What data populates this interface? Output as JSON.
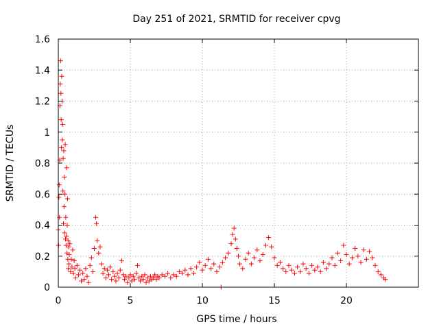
{
  "chart_data": {
    "type": "scatter",
    "title": "Day 251 of 2021, SRMTID for receiver cpvg",
    "xlabel": "GPS time / hours",
    "ylabel": "SRMTID / TECUs",
    "xlim": [
      0,
      25
    ],
    "ylim": [
      0,
      1.6
    ],
    "grid": true,
    "marker": "plus",
    "x_ticks": [
      0,
      5,
      10,
      15,
      20
    ],
    "x_tick_labels": [
      "0",
      "5",
      "10",
      "15",
      "20"
    ],
    "y_ticks": [
      0,
      0.2,
      0.4,
      0.6,
      0.8,
      1.0,
      1.2,
      1.4,
      1.6
    ],
    "y_tick_labels": [
      "0",
      "0.2",
      "0.4",
      "0.6",
      "0.8",
      "1",
      "1.2",
      "1.4",
      "1.6"
    ],
    "series": [
      {
        "name": "SRMTID",
        "color": "#ff0000",
        "points": [
          [
            0.0,
            0.37
          ],
          [
            0.02,
            0.27
          ],
          [
            0.04,
            0.58
          ],
          [
            0.06,
            0.66
          ],
          [
            0.08,
            0.45
          ],
          [
            0.1,
            0.82
          ],
          [
            0.12,
            1.17
          ],
          [
            0.14,
            1.31
          ],
          [
            0.16,
            1.46
          ],
          [
            0.18,
            1.25
          ],
          [
            0.2,
            1.08
          ],
          [
            0.22,
            0.9
          ],
          [
            0.24,
            1.36
          ],
          [
            0.26,
            1.2
          ],
          [
            0.28,
            0.95
          ],
          [
            0.3,
            1.05
          ],
          [
            0.32,
            0.62
          ],
          [
            0.34,
            0.83
          ],
          [
            0.36,
            0.41
          ],
          [
            0.38,
            0.88
          ],
          [
            0.4,
            0.52
          ],
          [
            0.42,
            0.71
          ],
          [
            0.44,
            0.35
          ],
          [
            0.46,
            0.6
          ],
          [
            0.48,
            0.92
          ],
          [
            0.5,
            0.31
          ],
          [
            0.52,
            0.45
          ],
          [
            0.54,
            0.27
          ],
          [
            0.56,
            0.33
          ],
          [
            0.58,
            0.77
          ],
          [
            0.6,
            0.22
          ],
          [
            0.62,
            0.4
          ],
          [
            0.64,
            0.57
          ],
          [
            0.66,
            0.18
          ],
          [
            0.68,
            0.3
          ],
          [
            0.7,
            0.12
          ],
          [
            0.72,
            0.26
          ],
          [
            0.74,
            0.15
          ],
          [
            0.76,
            0.21
          ],
          [
            0.8,
            0.28
          ],
          [
            0.85,
            0.1
          ],
          [
            0.9,
            0.18
          ],
          [
            0.95,
            0.13
          ],
          [
            1.0,
            0.24
          ],
          [
            1.05,
            0.09
          ],
          [
            1.1,
            0.17
          ],
          [
            1.15,
            0.12
          ],
          [
            1.2,
            0.06
          ],
          [
            1.3,
            0.14
          ],
          [
            1.4,
            0.08
          ],
          [
            1.5,
            0.11
          ],
          [
            1.6,
            0.04
          ],
          [
            1.7,
            0.09
          ],
          [
            1.8,
            0.05
          ],
          [
            1.9,
            0.12
          ],
          [
            2.0,
            0.07
          ],
          [
            2.1,
            0.03
          ],
          [
            2.2,
            0.14
          ],
          [
            2.3,
            0.19
          ],
          [
            2.4,
            0.1
          ],
          [
            2.5,
            0.25
          ],
          [
            2.6,
            0.45
          ],
          [
            2.65,
            0.41
          ],
          [
            2.7,
            0.3
          ],
          [
            2.8,
            0.22
          ],
          [
            2.9,
            0.26
          ],
          [
            3.0,
            0.15
          ],
          [
            3.1,
            0.09
          ],
          [
            3.2,
            0.12
          ],
          [
            3.3,
            0.06
          ],
          [
            3.4,
            0.11
          ],
          [
            3.5,
            0.08
          ],
          [
            3.6,
            0.13
          ],
          [
            3.7,
            0.05
          ],
          [
            3.8,
            0.1
          ],
          [
            3.9,
            0.07
          ],
          [
            4.0,
            0.04
          ],
          [
            4.1,
            0.09
          ],
          [
            4.2,
            0.06
          ],
          [
            4.3,
            0.11
          ],
          [
            4.4,
            0.17
          ],
          [
            4.5,
            0.08
          ],
          [
            4.6,
            0.05
          ],
          [
            4.7,
            0.07
          ],
          [
            4.8,
            0.03
          ],
          [
            4.9,
            0.06
          ],
          [
            5.0,
            0.08
          ],
          [
            5.1,
            0.04
          ],
          [
            5.2,
            0.07
          ],
          [
            5.3,
            0.05
          ],
          [
            5.4,
            0.09
          ],
          [
            5.5,
            0.14
          ],
          [
            5.6,
            0.06
          ],
          [
            5.7,
            0.04
          ],
          [
            5.8,
            0.07
          ],
          [
            5.9,
            0.05
          ],
          [
            6.0,
            0.08
          ],
          [
            6.1,
            0.03
          ],
          [
            6.2,
            0.06
          ],
          [
            6.3,
            0.04
          ],
          [
            6.4,
            0.07
          ],
          [
            6.5,
            0.05
          ],
          [
            6.6,
            0.06
          ],
          [
            6.7,
            0.08
          ],
          [
            6.8,
            0.05
          ],
          [
            6.9,
            0.07
          ],
          [
            7.0,
            0.06
          ],
          [
            7.2,
            0.08
          ],
          [
            7.4,
            0.07
          ],
          [
            7.6,
            0.09
          ],
          [
            7.8,
            0.06
          ],
          [
            8.0,
            0.08
          ],
          [
            8.2,
            0.07
          ],
          [
            8.4,
            0.1
          ],
          [
            8.6,
            0.09
          ],
          [
            8.8,
            0.11
          ],
          [
            9.0,
            0.08
          ],
          [
            9.2,
            0.12
          ],
          [
            9.4,
            0.09
          ],
          [
            9.6,
            0.13
          ],
          [
            9.8,
            0.16
          ],
          [
            10.0,
            0.11
          ],
          [
            10.2,
            0.14
          ],
          [
            10.4,
            0.18
          ],
          [
            10.6,
            0.12
          ],
          [
            10.8,
            0.15
          ],
          [
            11.0,
            0.1
          ],
          [
            11.2,
            0.13
          ],
          [
            11.3,
            0.0
          ],
          [
            11.4,
            0.16
          ],
          [
            11.6,
            0.19
          ],
          [
            11.8,
            0.22
          ],
          [
            12.0,
            0.28
          ],
          [
            12.1,
            0.34
          ],
          [
            12.2,
            0.38
          ],
          [
            12.3,
            0.31
          ],
          [
            12.4,
            0.25
          ],
          [
            12.5,
            0.2
          ],
          [
            12.6,
            0.15
          ],
          [
            12.8,
            0.12
          ],
          [
            13.0,
            0.18
          ],
          [
            13.2,
            0.22
          ],
          [
            13.4,
            0.15
          ],
          [
            13.6,
            0.19
          ],
          [
            13.8,
            0.24
          ],
          [
            14.0,
            0.17
          ],
          [
            14.2,
            0.21
          ],
          [
            14.4,
            0.27
          ],
          [
            14.6,
            0.32
          ],
          [
            14.8,
            0.26
          ],
          [
            15.0,
            0.19
          ],
          [
            15.2,
            0.14
          ],
          [
            15.4,
            0.16
          ],
          [
            15.6,
            0.12
          ],
          [
            15.8,
            0.1
          ],
          [
            16.0,
            0.14
          ],
          [
            16.2,
            0.11
          ],
          [
            16.4,
            0.09
          ],
          [
            16.6,
            0.13
          ],
          [
            16.8,
            0.1
          ],
          [
            17.0,
            0.15
          ],
          [
            17.2,
            0.12
          ],
          [
            17.4,
            0.09
          ],
          [
            17.6,
            0.14
          ],
          [
            17.8,
            0.11
          ],
          [
            18.0,
            0.13
          ],
          [
            18.2,
            0.1
          ],
          [
            18.4,
            0.16
          ],
          [
            18.6,
            0.12
          ],
          [
            18.8,
            0.15
          ],
          [
            19.0,
            0.19
          ],
          [
            19.2,
            0.14
          ],
          [
            19.4,
            0.22
          ],
          [
            19.6,
            0.17
          ],
          [
            19.8,
            0.27
          ],
          [
            20.0,
            0.21
          ],
          [
            20.2,
            0.15
          ],
          [
            20.4,
            0.19
          ],
          [
            20.6,
            0.25
          ],
          [
            20.8,
            0.2
          ],
          [
            21.0,
            0.16
          ],
          [
            21.2,
            0.24
          ],
          [
            21.4,
            0.18
          ],
          [
            21.6,
            0.23
          ],
          [
            21.8,
            0.19
          ],
          [
            22.0,
            0.14
          ],
          [
            22.2,
            0.1
          ],
          [
            22.4,
            0.08
          ],
          [
            22.6,
            0.06
          ],
          [
            22.7,
            0.05
          ]
        ]
      }
    ]
  }
}
